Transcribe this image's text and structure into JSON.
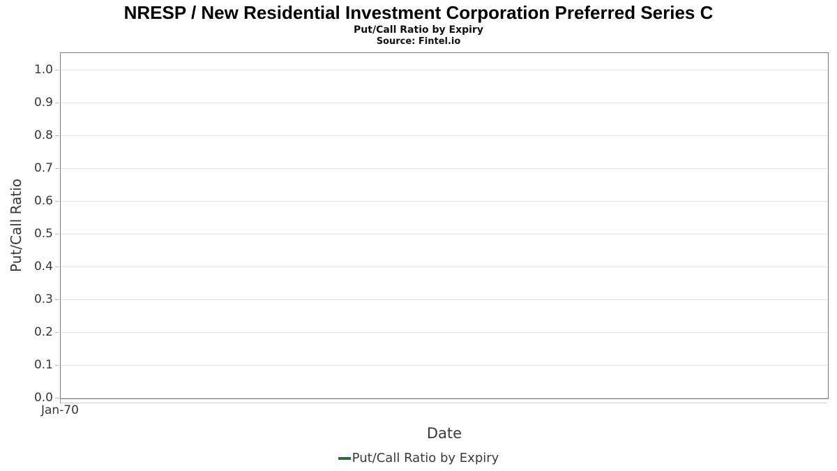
{
  "chart": {
    "title": "NRESP / New Residential Investment Corporation Preferred Series C",
    "subtitle": "Put/Call Ratio by Expiry",
    "source": "Source: Fintel.io",
    "xlabel": "Date",
    "ylabel": "Put/Call Ratio",
    "legend_label": "Put/Call Ratio by Expiry"
  },
  "chart_data": {
    "type": "line",
    "title": "NRESP / New Residential Investment Corporation Preferred Series C",
    "subtitle": "Put/Call Ratio by Expiry",
    "source": "Source: Fintel.io",
    "xlabel": "Date",
    "ylabel": "Put/Call Ratio",
    "series": [
      {
        "name": "Put/Call Ratio by Expiry",
        "color": "#2e6c37",
        "x": [],
        "values": []
      }
    ],
    "x_tick_labels": [
      "Jan-70"
    ],
    "y_tick_values": [
      0.0,
      0.1,
      0.2,
      0.3,
      0.4,
      0.5,
      0.6,
      0.7,
      0.8,
      0.9,
      1.0
    ],
    "y_tick_labels": [
      "0.0",
      "0.1",
      "0.2",
      "0.3",
      "0.4",
      "0.5",
      "0.6",
      "0.7",
      "0.8",
      "0.9",
      "1.0"
    ],
    "ylim": [
      0,
      1.055
    ],
    "grid": true,
    "legend_position": "bottom",
    "colors": {
      "grid": "#e4e4e4",
      "plot_border": "#7a7a7a",
      "axis_text": "#363636",
      "series_green": "#2e6c37"
    }
  }
}
